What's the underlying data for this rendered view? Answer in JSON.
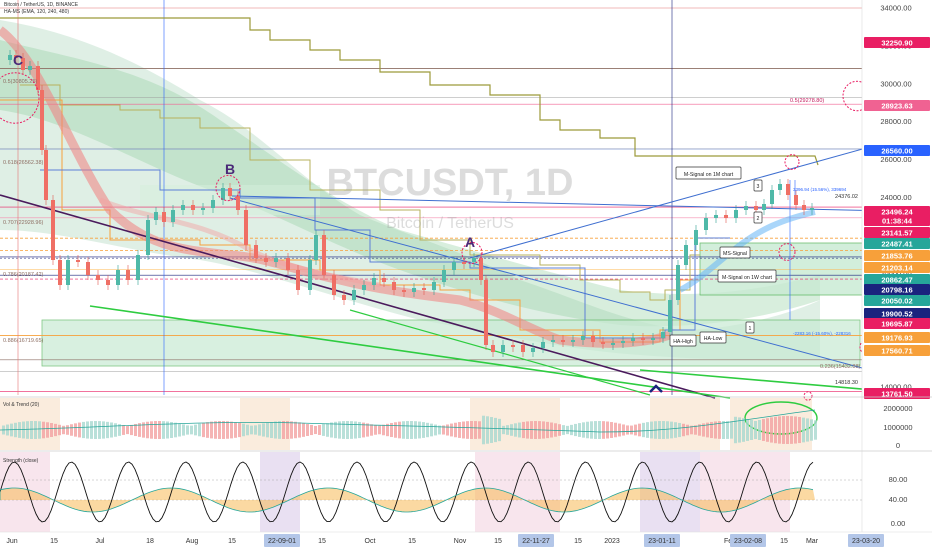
{
  "header": {
    "line1": "Bitcoin / TetherUS, 1D, BINANCE",
    "line2": "HA-MS (EMA, 120, 240, 480)"
  },
  "watermark": {
    "symbol": "BTCUSDT, 1D",
    "name": "Bitcoin / TetherUS"
  },
  "colors": {
    "red": "#ef5350",
    "green": "#26a69a",
    "blue": "#2962ff",
    "navy": "#1a237e",
    "olive": "#a39a3c",
    "orange": "#f7a03a",
    "lime": "#2ecc40",
    "purple": "#4a1a5c",
    "magenta": "#e91e63",
    "bgband": "#b9dcc5",
    "pinkbg": "#f8bbd0"
  },
  "chart_data": {
    "type": "line",
    "title": "",
    "symbol": "BTCUSDT",
    "interval": "1D",
    "price_axis_ticks": [
      14000,
      16000,
      18000,
      20000,
      22000,
      24000,
      26000,
      28000,
      30000,
      32000,
      34000
    ],
    "price_labels": [
      {
        "text": "32250.90",
        "color": "#e91e63"
      },
      {
        "text": "28923.63",
        "color": "#f06292"
      },
      {
        "text": "26560.00",
        "color": "#2962ff"
      },
      {
        "text": "23496.24",
        "color": "#e91e63"
      },
      {
        "text": "01:38:44",
        "color": "#e91e63"
      },
      {
        "text": "23141.57",
        "color": "#e91e63"
      },
      {
        "text": "22487.41",
        "color": "#26a69a"
      },
      {
        "text": "21853.76",
        "color": "#f7a03a"
      },
      {
        "text": "21203.14",
        "color": "#f7a03a"
      },
      {
        "text": "20862.47",
        "color": "#26a69a"
      },
      {
        "text": "20798.16",
        "color": "#1a237e"
      },
      {
        "text": "20050.02",
        "color": "#26a69a"
      },
      {
        "text": "19900.52",
        "color": "#1a237e"
      },
      {
        "text": "19695.87",
        "color": "#e91e63"
      },
      {
        "text": "19176.93",
        "color": "#f7a03a"
      },
      {
        "text": "17560.71",
        "color": "#f7a03a"
      },
      {
        "text": "13761.50",
        "color": "#e91e63"
      }
    ],
    "fib_labels": [
      "0.5(30805.25)",
      "0.618(26562.38)",
      "0.707(22928.96)",
      "0.786(20187.42)",
      "0.886(16719.65)",
      "0.236(15432.88)",
      "0.5(29278.80)"
    ],
    "side_values": [
      "24376.02",
      "14818.30"
    ],
    "annotations": [
      "C",
      "B",
      "A",
      "M-Signal on 1M chart",
      "M-Signal on 1W chart",
      "MS-Signal",
      "HA-High",
      "HA-Low",
      "3",
      "2",
      "1"
    ],
    "measure_up": "3396.94 (15.56%), 339694",
    "measure_down": "-2283.16 (-15.60%), -228316",
    "x_ticks": [
      "Jun",
      "15",
      "Jul",
      "18",
      "Aug",
      "15",
      "22-09-01",
      "15",
      "Oct",
      "15",
      "Nov",
      "15",
      "22-11-27",
      "15",
      "2023",
      "23-01-11",
      "Feb",
      "23-02-08",
      "15",
      "Mar",
      "23-03-20"
    ],
    "x_tick_highlight": [
      "22-09-01",
      "22-11-27",
      "23-01-11",
      "23-02-08",
      "23-03-20"
    ],
    "indicator1": {
      "name": "Vol & Trend (20)",
      "ticks": [
        "2000000",
        "1000000",
        "0"
      ]
    },
    "indicator2": {
      "name": "Strength (close)",
      "ticks": [
        "80.00",
        "40.00",
        "0.00"
      ]
    }
  }
}
